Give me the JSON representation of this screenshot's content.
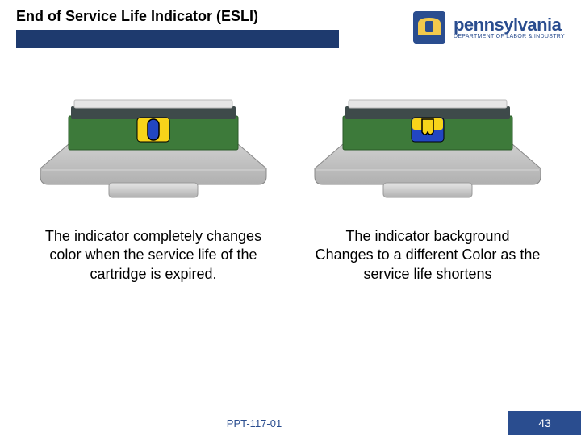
{
  "colors": {
    "bar_blue": "#1e3a6e",
    "logo_blue": "#2a4d8f",
    "footer_bg": "#2a4d8f",
    "footer_text": "#2a4d8f",
    "device_gray_light": "#e6e6e6",
    "device_gray_mid": "#cfcfcf",
    "device_gray_dark": "#b0b0b0",
    "device_dark_band": "#3e4a4a",
    "device_green": "#3d7a3a",
    "indicator_yellow": "#f7d41a",
    "indicator_blue": "#2246c2",
    "indicator_stroke": "#000000",
    "caption_color": "#000000"
  },
  "title": "End of Service Life Indicator (ESLI)",
  "logo": {
    "main": "pennsylvania",
    "sub": "DEPARTMENT OF LABOR & INDUSTRY"
  },
  "left": {
    "caption": "The indicator completely changes color when the service life of the cartridge is expired."
  },
  "right": {
    "caption": "The indicator background Changes to a different Color as the service life shortens"
  },
  "footer": {
    "code": "PPT-117-01",
    "page": "43"
  }
}
